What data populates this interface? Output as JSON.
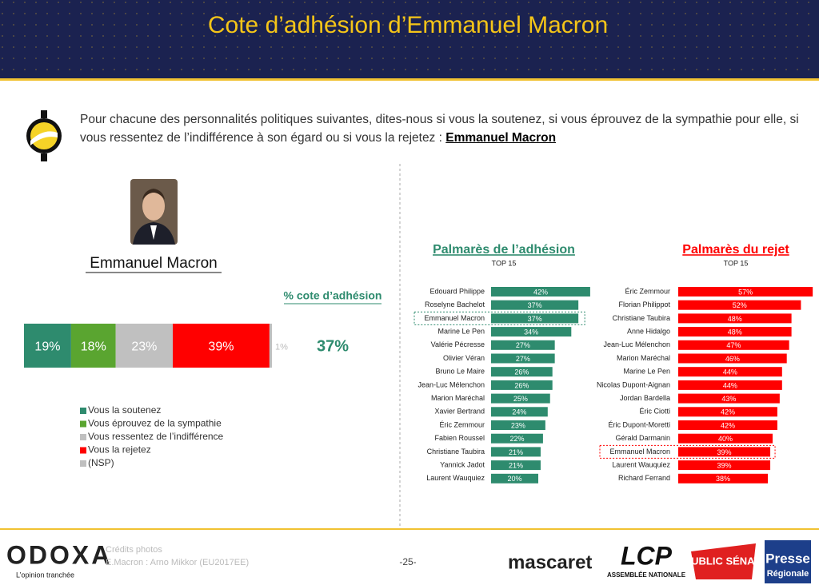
{
  "header": {
    "title": "Cote d’adhésion d’Emmanuel Macron"
  },
  "question": {
    "text": "Pour chacune des personnalités politiques suivantes, dites-nous si vous la soutenez, si vous éprouvez de la sympathie pour elle, si vous ressentez de l’indifférence à son égard ou si vous la rejetez : ",
    "highlight": "Emmanuel Macron"
  },
  "chart_data": [
    {
      "type": "stacked-bar",
      "title": "Emmanuel Macron",
      "series": [
        {
          "name": "Vous la soutenez",
          "color": "#2e8b6e",
          "values": [
            19
          ],
          "value_labels": [
            "19%"
          ]
        },
        {
          "name": "Vous éprouvez de la sympathie",
          "color": "#5aa530",
          "values": [
            18
          ],
          "value_labels": [
            "18%"
          ]
        },
        {
          "name": "Vous ressentez de l’indifférence",
          "color": "#c0c0c0",
          "values": [
            23
          ],
          "value_labels": [
            "23%"
          ]
        },
        {
          "name": "Vous la rejetez",
          "color": "#ff0000",
          "values": [
            39
          ],
          "value_labels": [
            "39%"
          ]
        },
        {
          "name": "(NSP)",
          "color": "#bfbfbf",
          "values": [
            1
          ],
          "value_labels": [
            "1%"
          ]
        }
      ],
      "summary": {
        "label": "% cote d’adhésion",
        "value_label": "37%"
      }
    },
    {
      "type": "hbar",
      "title": "Palmarès de l’adhésion",
      "subtitle": "TOP 15",
      "color": "#2e8b6e",
      "title_color": "#2e8b6e",
      "highlight": "Emmanuel Macron",
      "categories": [
        "Edouard Philippe",
        "Roselyne Bachelot",
        "Emmanuel Macron",
        "Marine Le Pen",
        "Valérie Pécresse",
        "Olivier Véran",
        "Bruno Le Maire",
        "Jean-Luc Mélenchon",
        "Marion Maréchal",
        "Xavier Bertrand",
        "Éric Zemmour",
        "Fabien Roussel",
        "Christiane Taubira",
        "Yannick Jadot",
        "Laurent Wauquiez"
      ],
      "values": [
        42,
        37,
        37,
        34,
        27,
        27,
        26,
        26,
        25,
        24,
        23,
        22,
        21,
        21,
        20
      ],
      "value_labels": [
        "42%",
        "37%",
        "37%",
        "34%",
        "27%",
        "27%",
        "26%",
        "26%",
        "25%",
        "24%",
        "23%",
        "22%",
        "21%",
        "21%",
        "20%"
      ]
    },
    {
      "type": "hbar",
      "title": "Palmarès du rejet",
      "subtitle": "TOP 15",
      "color": "#ff0000",
      "title_color": "#ff0000",
      "highlight": "Emmanuel Macron",
      "categories": [
        "Éric Zemmour",
        "Florian Philippot",
        "Christiane Taubira",
        "Anne Hidalgo",
        "Jean-Luc Mélenchon",
        "Marion Maréchal",
        "Marine Le Pen",
        "Nicolas Dupont-Aignan",
        "Jordan Bardella",
        "Éric Ciotti",
        "Éric Dupont-Moretti",
        "Gérald Darmanin",
        "Emmanuel Macron",
        "Laurent Wauquiez",
        "Richard Ferrand"
      ],
      "values": [
        57,
        52,
        48,
        48,
        47,
        46,
        44,
        44,
        43,
        42,
        42,
        40,
        39,
        39,
        38
      ],
      "value_labels": [
        "57%",
        "52%",
        "48%",
        "48%",
        "47%",
        "46%",
        "44%",
        "44%",
        "43%",
        "42%",
        "42%",
        "40%",
        "39%",
        "39%",
        "38%"
      ]
    }
  ],
  "footer": {
    "brand": "ODOXA",
    "tagline": "L’opinion tranchée",
    "credits": [
      "Crédits photos",
      "E.Macron : Arno Mikkor (EU2017EE)"
    ],
    "page": "-25-",
    "logos": [
      "mascaret",
      "LCP",
      "ASSEMBLÉE NATIONALE",
      "PUBLIC SÉNAT",
      "Presse",
      "Régionale"
    ]
  }
}
